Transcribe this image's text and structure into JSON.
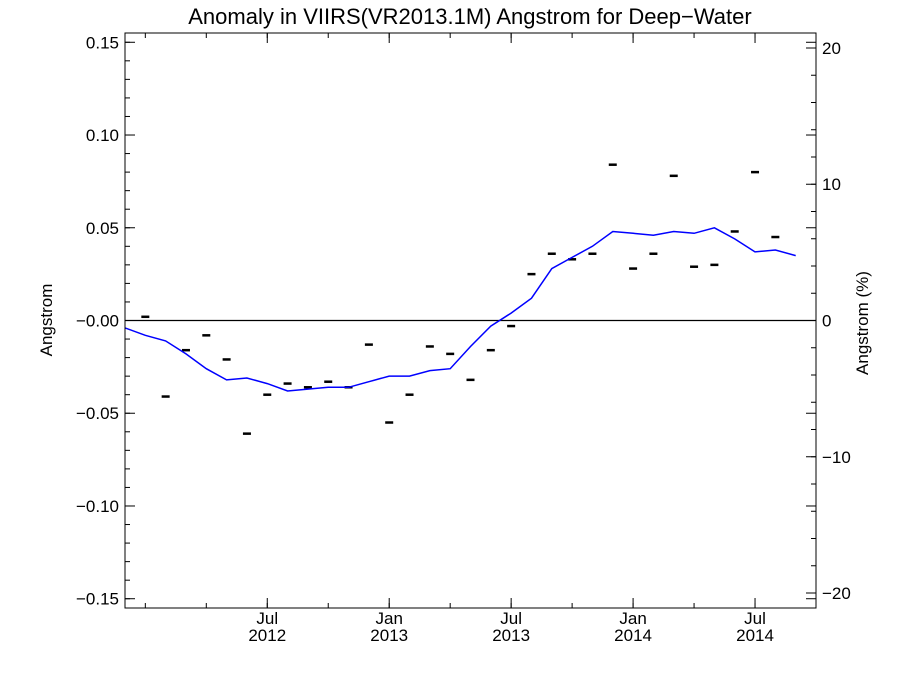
{
  "chart_data": {
    "type": "line",
    "title": "Anomaly in VIIRS(VR2013.1M) Angstrom for Deep−Water",
    "ylabel": "Angstrom",
    "y2label": "Angstrom (%)",
    "xlabel": "",
    "ylim": [
      -0.155,
      0.155
    ],
    "y2lim": [
      -21.1,
      21.1
    ],
    "xlim": [
      "2011-12",
      "2014-10"
    ],
    "yticks": [
      "−0.15",
      "−0.10",
      "−0.05",
      "−0.00",
      "0.05",
      "0.10",
      "0.15"
    ],
    "y2ticks": [
      "−20",
      "−10",
      "0",
      "10",
      "20"
    ],
    "xticks": [
      {
        "month": "Jul",
        "year": "2012"
      },
      {
        "month": "Jan",
        "year": "2013"
      },
      {
        "month": "Jul",
        "year": "2013"
      },
      {
        "month": "Jan",
        "year": "2014"
      },
      {
        "month": "Jul",
        "year": "2014"
      }
    ],
    "zero_line": true,
    "grid": false,
    "colors": {
      "smoothed": "#0000ff",
      "monthly": "#000000",
      "zero": "#000000"
    },
    "series": [
      {
        "marker": "dash",
        "points": [
          [
            "2012-01",
            0.002
          ],
          [
            "2012-02",
            -0.041
          ],
          [
            "2012-03",
            -0.016
          ],
          [
            "2012-04",
            -0.008
          ],
          [
            "2012-05",
            -0.021
          ],
          [
            "2012-06",
            -0.061
          ],
          [
            "2012-07",
            -0.04
          ],
          [
            "2012-08",
            -0.034
          ],
          [
            "2012-09",
            -0.036
          ],
          [
            "2012-10",
            -0.033
          ],
          [
            "2012-11",
            -0.036
          ],
          [
            "2012-12",
            -0.013
          ],
          [
            "2013-01",
            -0.055
          ],
          [
            "2013-02",
            -0.04
          ],
          [
            "2013-03",
            -0.014
          ],
          [
            "2013-04",
            -0.018
          ],
          [
            "2013-05",
            -0.032
          ],
          [
            "2013-06",
            -0.016
          ],
          [
            "2013-07",
            -0.003
          ],
          [
            "2013-08",
            0.025
          ],
          [
            "2013-09",
            0.036
          ],
          [
            "2013-10",
            0.033
          ],
          [
            "2013-11",
            0.036
          ],
          [
            "2013-12",
            0.084
          ],
          [
            "2014-01",
            0.028
          ],
          [
            "2014-02",
            0.036
          ],
          [
            "2014-03",
            0.078
          ],
          [
            "2014-04",
            0.029
          ],
          [
            "2014-05",
            0.03
          ],
          [
            "2014-06",
            0.048
          ],
          [
            "2014-07",
            0.08
          ],
          [
            "2014-08",
            0.045
          ]
        ]
      },
      {
        "marker": "line",
        "points": [
          [
            "2011-12",
            -0.004
          ],
          [
            "2012-01",
            -0.008
          ],
          [
            "2012-02",
            -0.011
          ],
          [
            "2012-03",
            -0.018
          ],
          [
            "2012-04",
            -0.026
          ],
          [
            "2012-05",
            -0.032
          ],
          [
            "2012-06",
            -0.031
          ],
          [
            "2012-07",
            -0.034
          ],
          [
            "2012-08",
            -0.038
          ],
          [
            "2012-09",
            -0.037
          ],
          [
            "2012-10",
            -0.036
          ],
          [
            "2012-11",
            -0.036
          ],
          [
            "2012-12",
            -0.033
          ],
          [
            "2013-01",
            -0.03
          ],
          [
            "2013-02",
            -0.03
          ],
          [
            "2013-03",
            -0.027
          ],
          [
            "2013-04",
            -0.026
          ],
          [
            "2013-05",
            -0.014
          ],
          [
            "2013-06",
            -0.003
          ],
          [
            "2013-07",
            0.004
          ],
          [
            "2013-08",
            0.012
          ],
          [
            "2013-09",
            0.028
          ],
          [
            "2013-10",
            0.034
          ],
          [
            "2013-11",
            0.04
          ],
          [
            "2013-12",
            0.048
          ],
          [
            "2014-01",
            0.047
          ],
          [
            "2014-02",
            0.046
          ],
          [
            "2014-03",
            0.048
          ],
          [
            "2014-04",
            0.047
          ],
          [
            "2014-05",
            0.05
          ],
          [
            "2014-06",
            0.044
          ],
          [
            "2014-07",
            0.037
          ],
          [
            "2014-08",
            0.038
          ],
          [
            "2014-09",
            0.035
          ]
        ]
      }
    ]
  }
}
